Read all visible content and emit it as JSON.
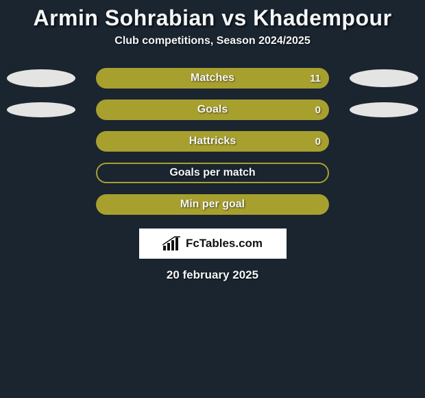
{
  "background_color": "#1a2530",
  "header": {
    "title": "Armin Sohrabian vs Khadempour",
    "title_fontsize": 32,
    "title_color": "#f5f6f7",
    "subtitle": "Club competitions, Season 2024/2025",
    "subtitle_fontsize": 16,
    "subtitle_color": "#f5f6f7"
  },
  "stats": {
    "bar_fill_color": "#a8a02e",
    "bar_outline_color": "#a8a02e",
    "bar_radius": 15,
    "label_color": "#f5f6f7",
    "label_fontsize": 16,
    "rows": [
      {
        "label": "Matches",
        "style": "filled",
        "value_right": "11",
        "left_ellipse": {
          "size": "big",
          "color": "#e4e4e2"
        },
        "right_ellipse": {
          "size": "big",
          "color": "#e4e4e2"
        }
      },
      {
        "label": "Goals",
        "style": "filled",
        "value_right": "0",
        "left_ellipse": {
          "size": "mid",
          "color": "#e4e4e2"
        },
        "right_ellipse": {
          "size": "mid",
          "color": "#e4e4e2"
        }
      },
      {
        "label": "Hattricks",
        "style": "filled",
        "value_right": "0",
        "left_ellipse": null,
        "right_ellipse": null
      },
      {
        "label": "Goals per match",
        "style": "outline",
        "value_right": "",
        "left_ellipse": null,
        "right_ellipse": null
      },
      {
        "label": "Min per goal",
        "style": "filled",
        "value_right": "",
        "left_ellipse": null,
        "right_ellipse": null
      }
    ]
  },
  "branding": {
    "site_name": "FcTables.com",
    "box_bg": "#ffffff",
    "text_color": "#111111",
    "fontsize": 17
  },
  "footer": {
    "date": "20 february 2025",
    "fontsize": 17,
    "color": "#f5f6f7"
  }
}
